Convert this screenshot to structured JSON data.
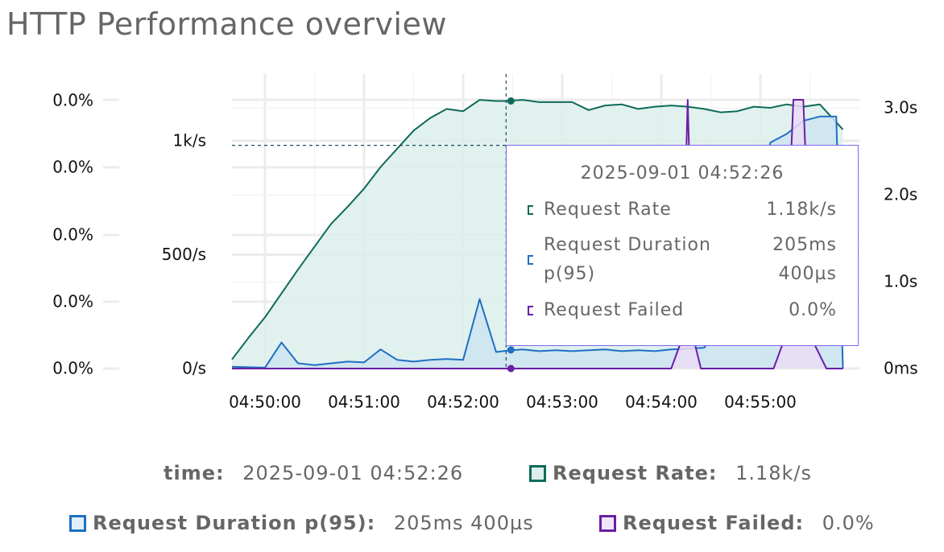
{
  "title": "HTTP Performance overview",
  "chart_data": {
    "type": "area",
    "title": "HTTP Performance overview",
    "x_ticks": [
      "04:50:00",
      "04:51:00",
      "04:52:00",
      "04:53:00",
      "04:54:00",
      "04:55:00"
    ],
    "y_left_outer_ticks": [
      "0.0%",
      "0.0%",
      "0.0%",
      "0.0%",
      "0.0%"
    ],
    "y_left_ticks": [
      "0/s",
      "500/s",
      "1k/s"
    ],
    "y_right_ticks": [
      "0ms",
      "1.0s",
      "2.0s",
      "3.0s"
    ],
    "ylim_rate": [
      0,
      1170
    ],
    "ylim_duration_s": [
      0,
      3.05
    ],
    "grid": true,
    "crosshair_time": "04:52:26",
    "series": [
      {
        "name": "Request Rate",
        "color": "#0e6b58",
        "fill": "#dcefeb",
        "axis": "rate",
        "x": [
          "04:49:40",
          "04:49:50",
          "04:50:00",
          "04:50:10",
          "04:50:20",
          "04:50:30",
          "04:50:40",
          "04:50:50",
          "04:51:00",
          "04:51:10",
          "04:51:20",
          "04:51:30",
          "04:51:40",
          "04:51:50",
          "04:52:00",
          "04:52:10",
          "04:52:20",
          "04:52:26",
          "04:52:36",
          "04:52:46",
          "04:52:56",
          "04:53:06",
          "04:53:16",
          "04:53:26",
          "04:53:36",
          "04:53:46",
          "04:53:56",
          "04:54:06",
          "04:54:16",
          "04:54:26",
          "04:54:36",
          "04:54:46",
          "04:54:56",
          "04:55:06",
          "04:55:16",
          "04:55:26",
          "04:55:36",
          "04:55:50"
        ],
        "values": [
          40,
          135,
          225,
          330,
          435,
          535,
          635,
          710,
          790,
          885,
          965,
          1045,
          1100,
          1140,
          1130,
          1180,
          1175,
          1175,
          1180,
          1170,
          1170,
          1170,
          1135,
          1155,
          1160,
          1140,
          1150,
          1155,
          1150,
          1140,
          1125,
          1130,
          1150,
          1145,
          1160,
          1150,
          1160,
          1050
        ]
      },
      {
        "name": "Request Duration p(95)",
        "color": "#1f6fc5",
        "fill": "#cce4f1",
        "axis": "duration",
        "x": [
          "04:49:40",
          "04:50:00",
          "04:50:10",
          "04:50:20",
          "04:50:30",
          "04:50:40",
          "04:50:50",
          "04:51:00",
          "04:51:10",
          "04:51:20",
          "04:51:30",
          "04:51:40",
          "04:51:50",
          "04:52:00",
          "04:52:10",
          "04:52:20",
          "04:52:26",
          "04:52:36",
          "04:52:46",
          "04:52:56",
          "04:53:06",
          "04:53:16",
          "04:53:26",
          "04:53:36",
          "04:53:46",
          "04:53:56",
          "04:54:06",
          "04:54:16",
          "04:54:26",
          "04:54:36",
          "04:54:46",
          "04:54:56",
          "04:55:06",
          "04:55:16",
          "04:55:26",
          "04:55:36",
          "04:55:46",
          "04:55:50"
        ],
        "values": [
          0.02,
          0.01,
          0.3,
          0.06,
          0.04,
          0.06,
          0.08,
          0.07,
          0.22,
          0.1,
          0.08,
          0.1,
          0.11,
          0.1,
          0.8,
          0.19,
          0.205,
          0.22,
          0.2,
          0.21,
          0.2,
          0.21,
          0.22,
          0.2,
          0.21,
          0.2,
          0.22,
          0.23,
          0.24,
          0.5,
          1.0,
          1.45,
          2.6,
          2.7,
          2.85,
          2.9,
          2.9,
          0.0
        ]
      },
      {
        "name": "Request Failed",
        "color": "#6a1fa6",
        "fill": "#e9dcf4",
        "axis": "failed",
        "x": [
          "04:49:40",
          "04:54:06",
          "04:54:12",
          "04:54:16",
          "04:54:20",
          "04:54:24",
          "04:55:08",
          "04:55:14",
          "04:55:20",
          "04:55:26",
          "04:55:32",
          "04:55:40",
          "04:55:50"
        ],
        "values": [
          0,
          0,
          0.1,
          1,
          0.1,
          0,
          0,
          0.1,
          1,
          1,
          0.1,
          0,
          0
        ]
      }
    ]
  },
  "tooltip": {
    "time": "2025-09-01 04:52:26",
    "rows": [
      {
        "name_lines": [
          "Request Rate"
        ],
        "value_lines": [
          "1.18k/s"
        ],
        "color": "#0e6b58"
      },
      {
        "name_lines": [
          "Request Duration",
          "p(95)"
        ],
        "value_lines": [
          "205ms",
          "400µs"
        ],
        "color": "#1f6fc5"
      },
      {
        "name_lines": [
          "Request Failed"
        ],
        "value_lines": [
          "0.0%"
        ],
        "color": "#6a1fa6"
      }
    ]
  },
  "legend": {
    "time_label": "time:",
    "time_value": "2025-09-01 04:52:26",
    "items": [
      {
        "label": "Request Rate:",
        "value": "1.18k/s",
        "color": "#0e6b58",
        "fill": "#dcefeb"
      },
      {
        "label": "Request Duration p(95):",
        "value": "205ms 400µs",
        "color": "#1f6fc5",
        "fill": "#e2eff9"
      },
      {
        "label": "Request Failed:",
        "value": "0.0%",
        "color": "#6a1fa6",
        "fill": "#f0e6f8"
      }
    ]
  }
}
